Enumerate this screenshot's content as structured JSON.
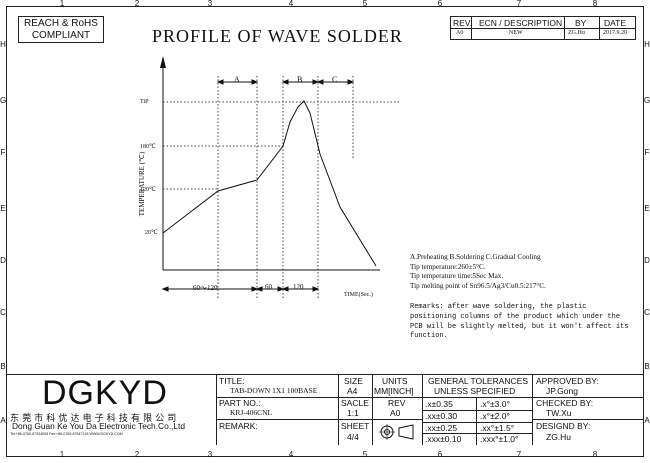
{
  "border": {
    "cols_top": [
      "1",
      "2",
      "3",
      "4",
      "5",
      "6",
      "7",
      "8"
    ],
    "cols_bottom": [
      "1",
      "2",
      "3",
      "4",
      "5",
      "6",
      "7",
      "8"
    ],
    "rows": [
      "H",
      "G",
      "F",
      "E",
      "D",
      "C",
      "B",
      "A"
    ]
  },
  "compliance": {
    "line1": "REACH & RoHS",
    "line2": "COMPLIANT"
  },
  "title": "PROFILE OF WAVE SOLDER",
  "revision": {
    "headers": {
      "rev": "REV.",
      "ecn": "ECN / DESCRIPTION",
      "by": "BY",
      "date": "DATE"
    },
    "row": {
      "rev": "A0",
      "ecn": "NEW",
      "by": "ZG.Hu",
      "date": "2017.9.20"
    }
  },
  "chart_data": {
    "type": "line",
    "ylabel": "TEMPERATURE (℃)",
    "xlabel": "TIME(Sec.)",
    "y_ticks": [
      "TiP",
      "180℃",
      "120℃",
      "20℃"
    ],
    "zones": {
      "a": "A",
      "b": "B",
      "c": "C"
    },
    "x_segments": [
      "60～120",
      "60",
      "120"
    ],
    "curve_points_in_chart_units": [
      [
        0,
        20
      ],
      [
        60,
        120
      ],
      [
        120,
        135
      ],
      [
        180,
        180
      ],
      [
        195,
        240
      ],
      [
        210,
        262
      ],
      [
        222,
        268
      ],
      [
        238,
        230
      ],
      [
        255,
        160
      ],
      [
        300,
        50
      ],
      [
        320,
        10
      ]
    ]
  },
  "notes": {
    "legend": "A.Preheating  B.Soldering  C.Gradual Cooling",
    "tip_temp": "Tip temperature:260±5°C.",
    "tip_time": "Tip temperature time:5Sec Max.",
    "tip_melt": "Tip melting point of Sn96.5/Ag3/Cu0.5:217°C.",
    "remarks": [
      "Remarks: after wave soldering, the plastic",
      "positioning columns of the product  which under the",
      "PCB will be slightly melted, but it won't affect its",
      "function."
    ]
  },
  "titleblock": {
    "logo": "DGKYD",
    "company_cn": "东 莞 市 科 优 达 电 子 科 技 有 限 公 司",
    "company_en": "Dong Guan Ke You Da Electronic Tech.Co.,Ltd",
    "contact": "Tel:+86-0769-87334008  Fax:+86-0769-87847126  WWW.DGKYD.COM",
    "title_label": "TITLE:",
    "title_value": "TAB-DOWN 1X1 100BASE",
    "part_label": "PART NO.:",
    "part_value": "KRJ-406CNL",
    "remark_label": "REMARK:",
    "size_label": "SIZE",
    "size_value": "A4",
    "units_label": "UNITS",
    "units_value": "MM[INCH]",
    "scale_label": "SACLE",
    "scale_value": "1:1",
    "rev_label": "REV",
    "rev_value": "A0",
    "sheet_label": "SHEET",
    "sheet_value": "4/4",
    "gt_title1": "GENERAL TOLERANCES",
    "gt_title2": "UNLESS SPECIFIED",
    "tol": [
      ".x±0.35",
      ".x°±3.0°",
      ".xx±0.30",
      ".x°±2.0°",
      ".xx±0.25",
      ".xx°±1.5°",
      ".xxx±0.10",
      ".xxx°±1.0°"
    ],
    "approved_label": "APPROVED BY:",
    "approved_value": "JP.Gong",
    "checked_label": "CHECKED BY:",
    "checked_value": "TW.Xu",
    "designed_label": "DESIGND BY:",
    "designed_value": "ZG.Hu"
  }
}
